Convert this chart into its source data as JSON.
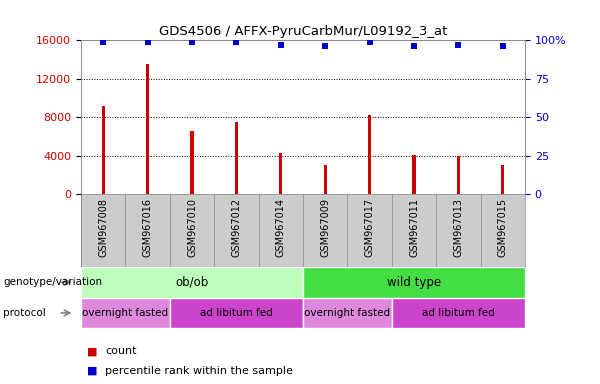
{
  "title": "GDS4506 / AFFX-PyruCarbMur/L09192_3_at",
  "samples": [
    "GSM967008",
    "GSM967016",
    "GSM967010",
    "GSM967012",
    "GSM967014",
    "GSM967009",
    "GSM967017",
    "GSM967011",
    "GSM967013",
    "GSM967015"
  ],
  "counts": [
    9200,
    13500,
    6600,
    7500,
    4300,
    3000,
    8200,
    4100,
    4000,
    3000
  ],
  "percentile_ranks": [
    99,
    99,
    99,
    99,
    97,
    96,
    99,
    96,
    97,
    96
  ],
  "bar_color": "#cc0000",
  "dot_color": "#0000cc",
  "ylim_left": [
    0,
    16000
  ],
  "ylim_right": [
    0,
    100
  ],
  "yticks_left": [
    0,
    4000,
    8000,
    12000,
    16000
  ],
  "yticks_right": [
    0,
    25,
    50,
    75,
    100
  ],
  "yticklabels_right": [
    "0",
    "25",
    "50",
    "75",
    "100%"
  ],
  "genotype_groups": [
    {
      "label": "ob/ob",
      "start": 0,
      "end": 5,
      "color": "#bbffbb"
    },
    {
      "label": "wild type",
      "start": 5,
      "end": 10,
      "color": "#44dd44"
    }
  ],
  "protocol_groups": [
    {
      "label": "overnight fasted",
      "start": 0,
      "end": 2,
      "color": "#dd88dd"
    },
    {
      "label": "ad libitum fed",
      "start": 2,
      "end": 5,
      "color": "#cc44cc"
    },
    {
      "label": "overnight fasted",
      "start": 5,
      "end": 7,
      "color": "#dd88dd"
    },
    {
      "label": "ad libitum fed",
      "start": 7,
      "end": 10,
      "color": "#cc44cc"
    }
  ],
  "legend_items": [
    {
      "color": "#cc0000",
      "label": "count"
    },
    {
      "color": "#0000cc",
      "label": "percentile rank within the sample"
    }
  ],
  "bar_width": 0.07,
  "dot_size": 18,
  "xtick_bg_color": "#cccccc",
  "xtick_border_color": "#888888"
}
